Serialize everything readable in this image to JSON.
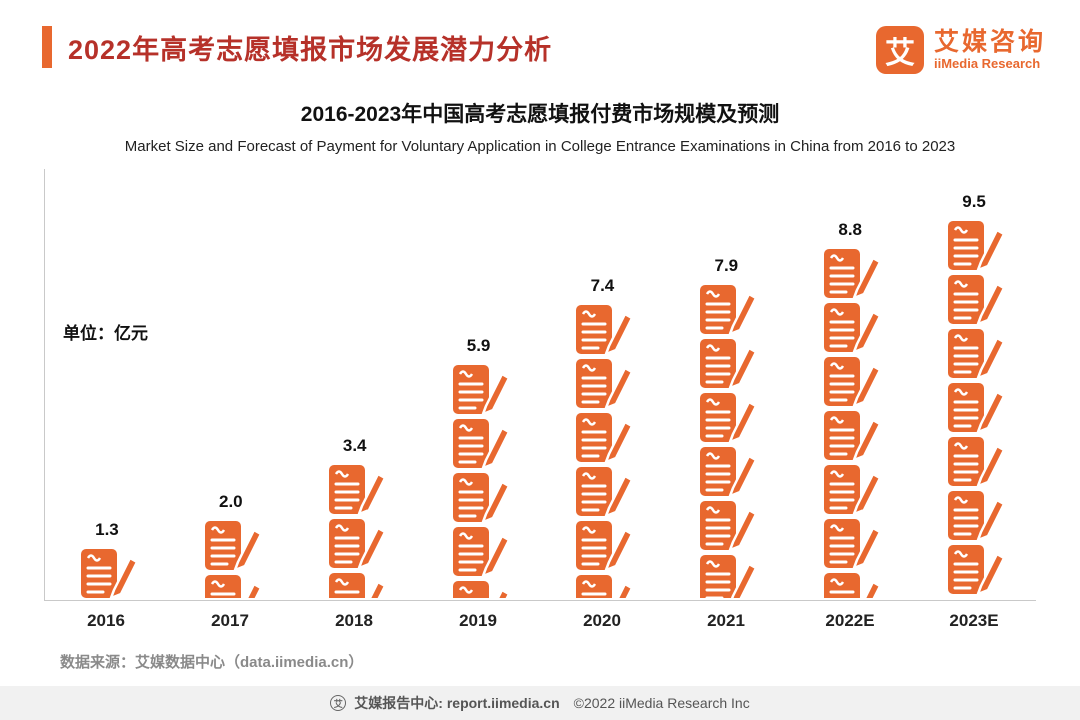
{
  "colors": {
    "accent": "#E8682F",
    "title": "#B63129",
    "axis": "#C9C9C9",
    "footer_bg": "#F1F1F1"
  },
  "header": {
    "title": "2022年高考志愿填报市场发展潜力分析",
    "logo_glyph": "艾",
    "brand_cn": "艾媒咨询",
    "brand_en": "iiMedia Research"
  },
  "chart": {
    "title_cn": "2016-2023年中国高考志愿填报付费市场规模及预测",
    "title_en": "Market Size and Forecast of Payment for Voluntary Application in College Entrance Examinations in China from 2016 to 2023",
    "unit_label": "单位：亿元",
    "source": "数据来源：艾媒数据中心（data.iimedia.cn）"
  },
  "chart_data": {
    "type": "bar",
    "categories": [
      "2016",
      "2017",
      "2018",
      "2019",
      "2020",
      "2021",
      "2022E",
      "2023E"
    ],
    "values": [
      1.3,
      2.0,
      3.4,
      5.9,
      7.4,
      7.9,
      8.8,
      9.5
    ],
    "labels": [
      "1.3",
      "2.0",
      "3.4",
      "5.9",
      "7.4",
      "7.9",
      "8.8",
      "9.5"
    ],
    "title": "2016-2023年中国高考志愿填报付费市场规模及预测",
    "xlabel": "",
    "ylabel": "亿元",
    "ylim": [
      0,
      10
    ],
    "legend": "none",
    "grid": false,
    "bar_style": "pictogram-document-pencil"
  },
  "footer": {
    "icon_glyph": "艾",
    "brand": "艾媒报告中心: report.iimedia.cn",
    "copyright": "©2022  iiMedia Research  Inc"
  }
}
